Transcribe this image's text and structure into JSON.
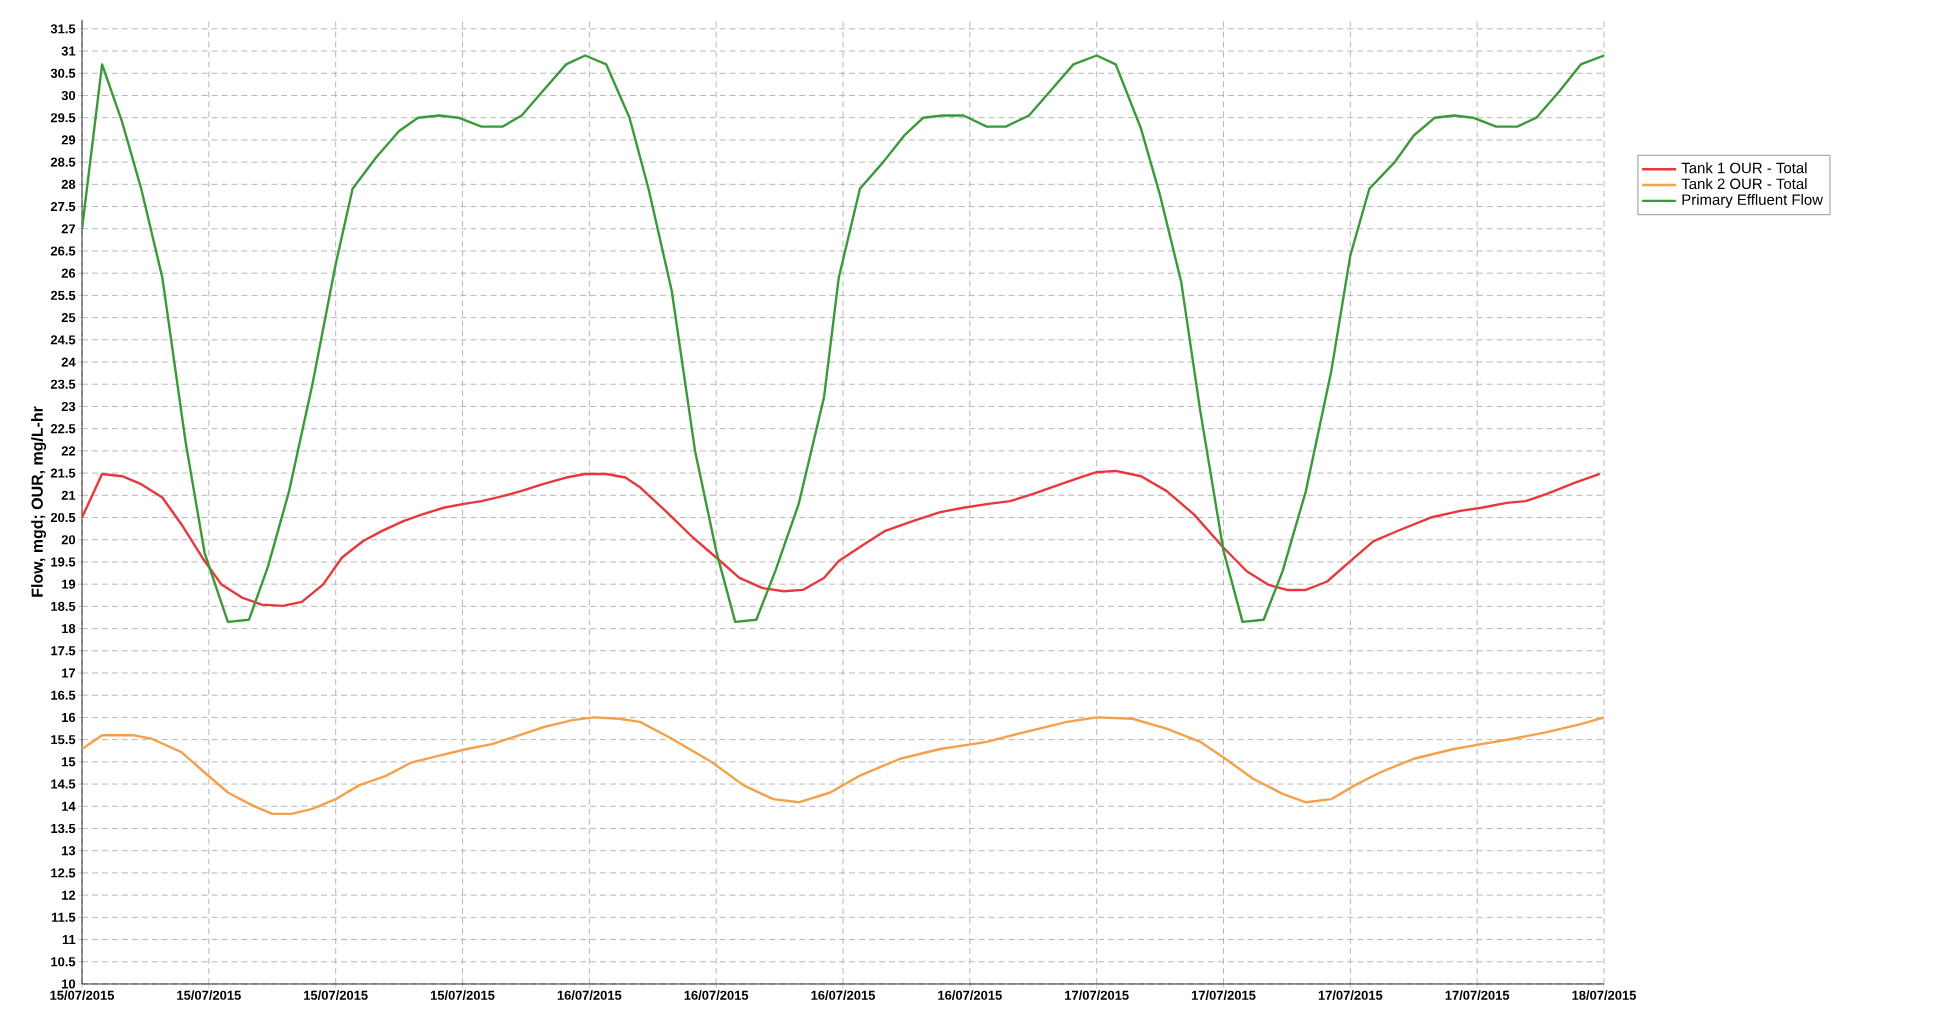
{
  "chart_data": {
    "type": "line",
    "ylabel": "Flow, mgd; OUR, mg/L-hr",
    "xlim": [
      "2015-07-15T00:00",
      "2015-07-18T00:00"
    ],
    "ylim": [
      10,
      31.7
    ],
    "xticks": [
      {
        "value": "2015-07-15T00:00",
        "label": "15/07/2015"
      },
      {
        "value": "2015-07-15T06:00",
        "label": "15/07/2015"
      },
      {
        "value": "2015-07-15T12:00",
        "label": "15/07/2015"
      },
      {
        "value": "2015-07-15T18:00",
        "label": "15/07/2015"
      },
      {
        "value": "2015-07-16T00:00",
        "label": "16/07/2015"
      },
      {
        "value": "2015-07-16T06:00",
        "label": "16/07/2015"
      },
      {
        "value": "2015-07-16T12:00",
        "label": "16/07/2015"
      },
      {
        "value": "2015-07-16T18:00",
        "label": "16/07/2015"
      },
      {
        "value": "2015-07-17T00:00",
        "label": "17/07/2015"
      },
      {
        "value": "2015-07-17T06:00",
        "label": "17/07/2015"
      },
      {
        "value": "2015-07-17T12:00",
        "label": "17/07/2015"
      },
      {
        "value": "2015-07-17T18:00",
        "label": "17/07/2015"
      },
      {
        "value": "2015-07-18T00:00",
        "label": "18/07/2015"
      }
    ],
    "yticks": [
      10,
      10.5,
      11,
      11.5,
      12,
      12.5,
      13,
      13.5,
      14,
      14.5,
      15,
      15.5,
      16,
      16.5,
      17,
      17.5,
      18,
      18.5,
      19,
      19.5,
      20,
      20.5,
      21,
      21.5,
      22,
      22.5,
      23,
      23.5,
      24,
      24.5,
      25,
      25.5,
      26,
      26.5,
      27,
      27.5,
      28,
      28.5,
      29,
      29.5,
      30,
      30.5,
      31,
      31.5
    ],
    "grid": true,
    "legend": "top right",
    "series": [
      {
        "name": "Tank 1 OUR - Total",
        "color": "#e8383d",
        "x": [
          "2015-07-15T00:00",
          "2015-07-15T00:57",
          "2015-07-15T01:54",
          "2015-07-15T02:48",
          "2015-07-15T03:48",
          "2015-07-15T04:42",
          "2015-07-15T05:42",
          "2015-07-15T06:36",
          "2015-07-15T07:36",
          "2015-07-15T08:30",
          "2015-07-15T09:30",
          "2015-07-15T10:24",
          "2015-07-15T11:24",
          "2015-07-15T12:18",
          "2015-07-15T13:18",
          "2015-07-15T14:12",
          "2015-07-15T15:12",
          "2015-07-15T16:06",
          "2015-07-15T17:06",
          "2015-07-15T18:00",
          "2015-07-15T18:54",
          "2015-07-15T19:54",
          "2015-07-15T20:48",
          "2015-07-15T21:48",
          "2015-07-15T22:54",
          "2015-07-15T23:48",
          "2015-07-16T00:48",
          "2015-07-16T01:42",
          "2015-07-16T02:24",
          "2015-07-16T03:36",
          "2015-07-16T04:54",
          "2015-07-16T06:00",
          "2015-07-16T07:06",
          "2015-07-16T08:12",
          "2015-07-16T09:12",
          "2015-07-16T10:06",
          "2015-07-16T11:06",
          "2015-07-16T11:48",
          "2015-07-16T13:00",
          "2015-07-16T14:00",
          "2015-07-16T15:18",
          "2015-07-16T16:36",
          "2015-07-16T17:42",
          "2015-07-16T18:48",
          "2015-07-16T19:54",
          "2015-07-16T21:00",
          "2015-07-16T22:18",
          "2015-07-16T23:24",
          "2015-07-17T00:00",
          "2015-07-17T00:54",
          "2015-07-17T02:06",
          "2015-07-17T03:18",
          "2015-07-17T04:36",
          "2015-07-17T06:00",
          "2015-07-17T07:06",
          "2015-07-17T08:06",
          "2015-07-17T09:00",
          "2015-07-17T09:54",
          "2015-07-17T10:54",
          "2015-07-17T12:00",
          "2015-07-17T13:06",
          "2015-07-17T14:24",
          "2015-07-17T15:48",
          "2015-07-17T17:12",
          "2015-07-17T18:12",
          "2015-07-17T19:24",
          "2015-07-17T20:18",
          "2015-07-17T21:18",
          "2015-07-17T22:36",
          "2015-07-17T23:48"
        ],
        "values": [
          20.5,
          21.48,
          21.43,
          21.25,
          20.95,
          20.35,
          19.59,
          18.99,
          18.69,
          18.54,
          18.51,
          18.6,
          18.99,
          19.6,
          19.97,
          20.2,
          20.42,
          20.57,
          20.72,
          20.8,
          20.87,
          20.98,
          21.1,
          21.25,
          21.4,
          21.48,
          21.48,
          21.4,
          21.18,
          20.65,
          20.05,
          19.6,
          19.14,
          18.91,
          18.84,
          18.87,
          19.14,
          19.52,
          19.9,
          20.2,
          20.42,
          20.62,
          20.72,
          20.8,
          20.87,
          21.03,
          21.25,
          21.43,
          21.52,
          21.55,
          21.43,
          21.1,
          20.57,
          19.82,
          19.29,
          18.99,
          18.87,
          18.87,
          19.06,
          19.52,
          19.97,
          20.23,
          20.5,
          20.65,
          20.72,
          20.83,
          20.87,
          21.03,
          21.28,
          21.48
        ]
      },
      {
        "name": "Tank 2 OUR - Total",
        "color": "#f5a04a",
        "x": [
          "2015-07-15T00:00",
          "2015-07-15T00:57",
          "2015-07-15T02:24",
          "2015-07-15T03:18",
          "2015-07-15T04:42",
          "2015-07-15T05:48",
          "2015-07-15T06:54",
          "2015-07-15T08:06",
          "2015-07-15T09:00",
          "2015-07-15T09:54",
          "2015-07-15T10:54",
          "2015-07-15T12:00",
          "2015-07-15T13:06",
          "2015-07-15T14:24",
          "2015-07-15T15:36",
          "2015-07-15T16:54",
          "2015-07-15T18:12",
          "2015-07-15T19:24",
          "2015-07-15T20:42",
          "2015-07-15T21:54",
          "2015-07-15T23:12",
          "2015-07-16T00:12",
          "2015-07-16T01:24",
          "2015-07-16T02:24",
          "2015-07-16T03:54",
          "2015-07-16T05:48",
          "2015-07-16T07:18",
          "2015-07-16T08:42",
          "2015-07-16T09:54",
          "2015-07-16T11:24",
          "2015-07-16T12:48",
          "2015-07-16T14:42",
          "2015-07-16T16:36",
          "2015-07-16T18:48",
          "2015-07-16T20:36",
          "2015-07-16T22:36",
          "2015-07-17T00:00",
          "2015-07-17T01:42",
          "2015-07-17T03:18",
          "2015-07-17T04:54",
          "2015-07-17T06:00",
          "2015-07-17T07:24",
          "2015-07-17T08:48",
          "2015-07-17T09:54",
          "2015-07-17T11:06",
          "2015-07-17T12:12",
          "2015-07-17T13:24",
          "2015-07-17T15:00",
          "2015-07-17T16:54",
          "2015-07-17T18:12",
          "2015-07-17T19:42",
          "2015-07-17T21:18",
          "2015-07-17T22:54",
          "2015-07-18T00:00"
        ],
        "values": [
          15.29,
          15.6,
          15.6,
          15.52,
          15.22,
          14.76,
          14.31,
          14.01,
          13.83,
          13.83,
          13.94,
          14.16,
          14.47,
          14.69,
          14.99,
          15.14,
          15.29,
          15.4,
          15.6,
          15.79,
          15.94,
          16.0,
          15.97,
          15.9,
          15.52,
          14.99,
          14.47,
          14.16,
          14.09,
          14.31,
          14.69,
          15.07,
          15.29,
          15.45,
          15.67,
          15.9,
          16.0,
          15.97,
          15.75,
          15.45,
          15.1,
          14.62,
          14.28,
          14.09,
          14.16,
          14.47,
          14.76,
          15.07,
          15.29,
          15.4,
          15.52,
          15.67,
          15.85,
          16.0
        ]
      },
      {
        "name": "Primary Effluent Flow",
        "color": "#3a9a3a",
        "x": [
          "2015-07-15T00:00",
          "2015-07-15T00:57",
          "2015-07-15T01:54",
          "2015-07-15T02:48",
          "2015-07-15T03:48",
          "2015-07-15T04:54",
          "2015-07-15T05:48",
          "2015-07-15T06:54",
          "2015-07-15T07:54",
          "2015-07-15T08:48",
          "2015-07-15T09:48",
          "2015-07-15T10:54",
          "2015-07-15T12:00",
          "2015-07-15T12:48",
          "2015-07-15T13:54",
          "2015-07-15T15:00",
          "2015-07-15T15:54",
          "2015-07-15T16:54",
          "2015-07-15T17:48",
          "2015-07-15T18:54",
          "2015-07-15T19:54",
          "2015-07-15T20:48",
          "2015-07-15T21:48",
          "2015-07-15T22:54",
          "2015-07-15T23:48",
          "2015-07-16T00:48",
          "2015-07-16T01:54",
          "2015-07-16T02:48",
          "2015-07-16T03:54",
          "2015-07-16T05:00",
          "2015-07-16T06:00",
          "2015-07-16T06:54",
          "2015-07-16T07:54",
          "2015-07-16T08:48",
          "2015-07-16T09:54",
          "2015-07-16T11:06",
          "2015-07-16T11:48",
          "2015-07-16T12:48",
          "2015-07-16T13:54",
          "2015-07-16T14:54",
          "2015-07-16T15:48",
          "2015-07-16T16:42",
          "2015-07-16T17:42",
          "2015-07-16T18:48",
          "2015-07-16T19:42",
          "2015-07-16T20:48",
          "2015-07-16T21:54",
          "2015-07-16T22:54",
          "2015-07-17T00:00",
          "2015-07-17T00:54",
          "2015-07-17T02:06",
          "2015-07-17T03:00",
          "2015-07-17T04:00",
          "2015-07-17T04:54",
          "2015-07-17T06:00",
          "2015-07-17T06:54",
          "2015-07-17T07:54",
          "2015-07-17T08:48",
          "2015-07-17T09:54",
          "2015-07-17T11:06",
          "2015-07-17T12:00",
          "2015-07-17T12:54",
          "2015-07-17T14:06",
          "2015-07-17T15:00",
          "2015-07-17T16:00",
          "2015-07-17T16:54",
          "2015-07-17T17:48",
          "2015-07-17T18:54",
          "2015-07-17T19:54",
          "2015-07-17T20:48",
          "2015-07-17T21:54",
          "2015-07-17T22:54",
          "2015-07-18T00:00"
        ],
        "values": [
          27.0,
          30.7,
          29.4,
          27.9,
          25.9,
          22.2,
          19.7,
          18.15,
          18.2,
          19.4,
          21.1,
          23.5,
          26.2,
          27.9,
          28.6,
          29.2,
          29.5,
          29.55,
          29.5,
          29.3,
          29.3,
          29.55,
          30.1,
          30.7,
          30.9,
          30.7,
          29.5,
          27.9,
          25.6,
          22.0,
          19.75,
          18.15,
          18.2,
          19.3,
          20.8,
          23.2,
          25.9,
          27.9,
          28.5,
          29.1,
          29.5,
          29.55,
          29.55,
          29.3,
          29.3,
          29.55,
          30.15,
          30.7,
          30.9,
          30.7,
          29.25,
          27.75,
          25.8,
          22.9,
          19.75,
          18.15,
          18.2,
          19.3,
          21.1,
          23.8,
          26.4,
          27.9,
          28.5,
          29.1,
          29.5,
          29.55,
          29.5,
          29.3,
          29.3,
          29.5,
          30.1,
          30.7,
          30.9
        ]
      }
    ]
  }
}
